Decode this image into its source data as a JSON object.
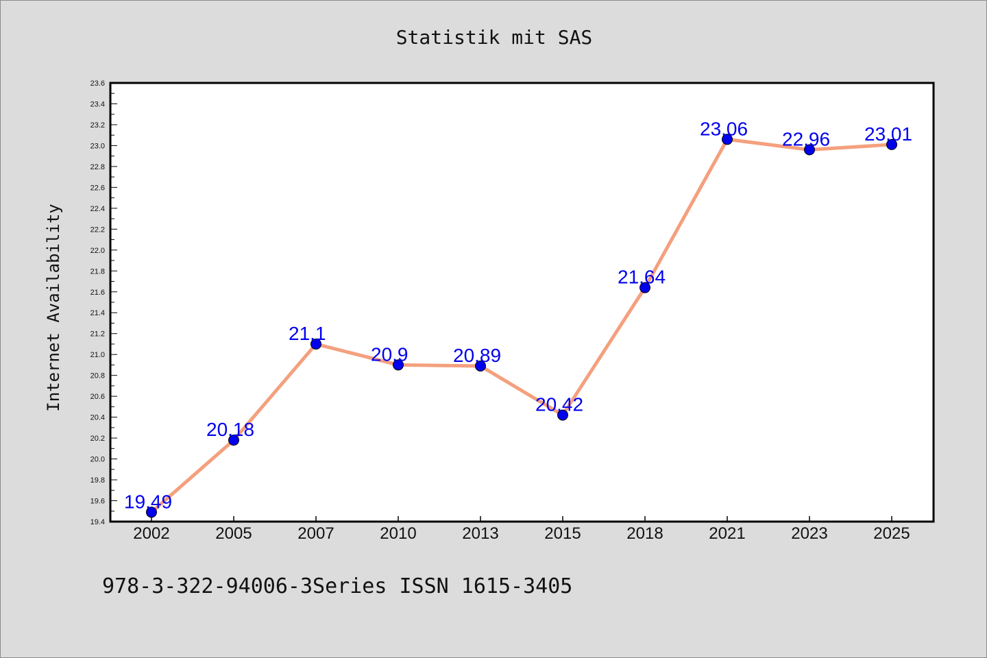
{
  "chart_data": {
    "type": "line",
    "title": "Statistik mit SAS",
    "ylabel": "Internet Availability",
    "xlabel": "",
    "categories": [
      "2002",
      "2005",
      "2007",
      "2010",
      "2013",
      "2015",
      "2018",
      "2021",
      "2023",
      "2025"
    ],
    "values": [
      19.49,
      20.18,
      21.1,
      20.9,
      20.89,
      20.42,
      21.64,
      23.06,
      22.96,
      23.01
    ],
    "data_labels": [
      "19.49",
      "20.18",
      "21.1",
      "20.9",
      "20.89",
      "20.42",
      "21.64",
      "23.06",
      "22.96",
      "23.01"
    ],
    "ylim": [
      19.4,
      23.6
    ],
    "yticks": [
      "19.4",
      "19.6",
      "19.8",
      "20.0",
      "20.2",
      "20.4",
      "20.6",
      "20.8",
      "21.0",
      "21.2",
      "21.4",
      "21.6",
      "21.8",
      "22.0",
      "22.2",
      "22.4",
      "22.6",
      "22.8",
      "23.0",
      "23.2",
      "23.4",
      "23.6"
    ],
    "grid": false,
    "line_color": "#f4a07e",
    "marker_color": "#0000ee",
    "label_color": "#0000ee",
    "footer": "978-3-322-94006-3Series ISSN 1615-3405"
  }
}
